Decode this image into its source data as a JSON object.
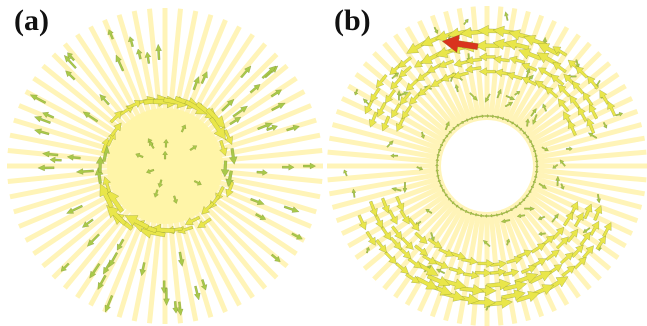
{
  "figure": {
    "panels": [
      {
        "id": "a",
        "label": "(a)"
      },
      {
        "id": "b",
        "label": "(b)"
      }
    ]
  },
  "colors": {
    "background": "#ffffff",
    "ray": "#fff4b8",
    "core_fill": "#fff5a8",
    "arrow_green": "#a8c94a",
    "arrow_yellow": "#e9e64a",
    "arrow_orange": "#e58a2a",
    "arrow_red": "#d9341e"
  }
}
